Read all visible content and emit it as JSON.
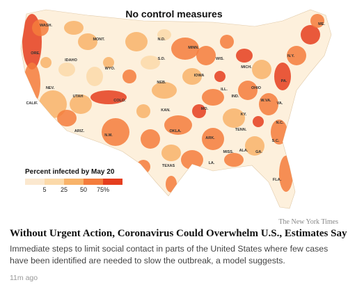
{
  "map": {
    "title": "No control measures",
    "state_labels": [
      "WASH.",
      "ORE.",
      "CALIF.",
      "NEV.",
      "IDAHO",
      "MONT.",
      "WYO.",
      "UTAH",
      "ARIZ.",
      "N.M.",
      "COLO.",
      "N.D.",
      "S.D.",
      "NEB.",
      "KAN.",
      "OKLA.",
      "TEXAS",
      "MINN.",
      "IOWA",
      "MO.",
      "ARK.",
      "LA.",
      "WIS.",
      "ILL.",
      "MICH.",
      "IND.",
      "OHIO",
      "KY.",
      "TENN.",
      "MISS.",
      "ALA.",
      "GA.",
      "FLA.",
      "S.C.",
      "N.C.",
      "VA.",
      "W.VA.",
      "PA.",
      "N.Y.",
      "ME."
    ],
    "colors": {
      "none": "#fdf0dc",
      "low": "#fbd9a9",
      "mid": "#f8b36a",
      "high": "#f47c3c",
      "max": "#e53e1e"
    }
  },
  "legend": {
    "title": "Percent infected by May 20",
    "ticks": [
      "5",
      "25",
      "50",
      "75%"
    ],
    "colors": [
      "#fbe8cf",
      "#fbd9a9",
      "#f8b36a",
      "#f47c3c",
      "#e53e1e"
    ]
  },
  "article": {
    "source": "The New York Times",
    "headline": "Without Urgent Action, Coronavirus Could Overwhelm U.S., Estimates Say",
    "summary": "Immediate steps to limit social contact in parts of the United States where few cases have been identified are needed to slow the outbreak, a model suggests.",
    "timestamp": "11m ago"
  }
}
